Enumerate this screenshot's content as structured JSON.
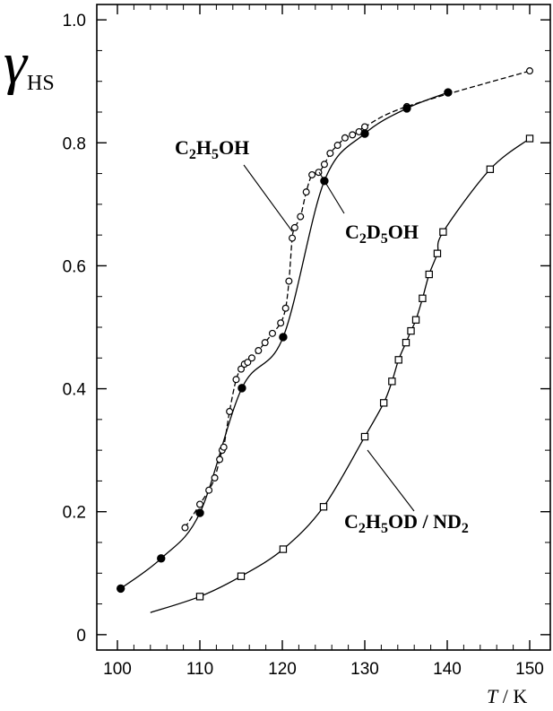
{
  "chart_data": {
    "type": "scatter",
    "xlabel": {
      "var": "T",
      "sep": " / ",
      "unit": "K"
    },
    "ylabel": {
      "main": "γ",
      "sub": "HS"
    },
    "xlim": [
      97.5,
      152.5
    ],
    "ylim": [
      -0.025,
      1.025
    ],
    "xticks": [
      100,
      110,
      120,
      130,
      140,
      150
    ],
    "yticks": [
      0,
      0.2,
      0.4,
      0.6,
      0.8,
      1.0
    ],
    "ytick_labels": [
      "0",
      "0.2",
      "0.4",
      "0.6",
      "0.8",
      "1.0"
    ],
    "grid": false,
    "series": [
      {
        "name": "C2H5OH",
        "marker": "open-circle",
        "label": {
          "parts": [
            [
              "C",
              false
            ],
            [
              "2",
              true
            ],
            [
              "H",
              false
            ],
            [
              "5",
              true
            ],
            [
              "OH",
              false
            ]
          ]
        },
        "x": [
          108.2,
          110.0,
          111.1,
          111.8,
          112.4,
          112.7,
          112.9,
          113.6,
          114.4,
          115.0,
          115.4,
          115.8,
          116.3,
          117.1,
          117.9,
          118.8,
          119.8,
          120.4,
          120.8,
          121.2,
          121.5,
          122.2,
          122.9,
          123.6,
          124.4,
          125.1,
          125.8,
          126.7,
          127.6,
          128.5,
          129.3,
          130.0,
          135.1,
          150.0
        ],
        "y": [
          0.174,
          0.212,
          0.235,
          0.255,
          0.285,
          0.3,
          0.305,
          0.363,
          0.415,
          0.432,
          0.44,
          0.443,
          0.45,
          0.462,
          0.475,
          0.49,
          0.507,
          0.531,
          0.575,
          0.645,
          0.662,
          0.68,
          0.72,
          0.748,
          0.752,
          0.765,
          0.783,
          0.796,
          0.808,
          0.813,
          0.818,
          0.826,
          0.859,
          0.917
        ]
      },
      {
        "name": "C2D5OH",
        "marker": "filled-circle",
        "label": {
          "parts": [
            [
              "C",
              false
            ],
            [
              "2",
              true
            ],
            [
              "D",
              false
            ],
            [
              "5",
              true
            ],
            [
              "OH",
              false
            ]
          ]
        },
        "x": [
          100.4,
          105.3,
          110.0,
          115.1,
          120.1,
          125.1,
          130.0,
          135.1,
          140.1
        ],
        "y": [
          0.075,
          0.124,
          0.198,
          0.401,
          0.484,
          0.738,
          0.815,
          0.856,
          0.882
        ]
      },
      {
        "name": "C2H5OD / ND2",
        "marker": "open-square",
        "label": {
          "parts": [
            [
              "C",
              false
            ],
            [
              "2",
              true
            ],
            [
              "H",
              false
            ],
            [
              "5",
              true
            ],
            [
              "OD / ND",
              false
            ],
            [
              "2",
              true
            ]
          ]
        },
        "x": [
          110.0,
          115.0,
          120.1,
          125.0,
          130.0,
          132.3,
          133.3,
          134.1,
          135.0,
          135.6,
          136.2,
          137.0,
          137.8,
          138.8,
          139.5,
          145.2,
          150.0
        ],
        "y": [
          0.062,
          0.095,
          0.139,
          0.208,
          0.322,
          0.377,
          0.412,
          0.447,
          0.475,
          0.494,
          0.512,
          0.547,
          0.586,
          0.62,
          0.655,
          0.757,
          0.807
        ]
      }
    ]
  }
}
